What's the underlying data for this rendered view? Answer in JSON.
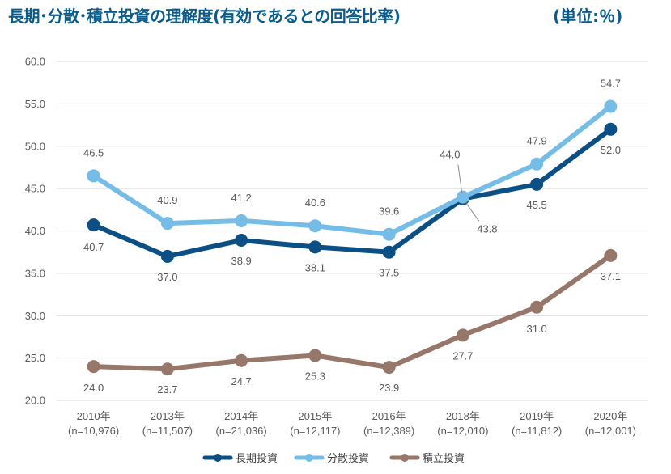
{
  "header": {
    "title": "長期･分散･積立投資の理解度(有効であるとの回答比率)",
    "unit": "(単位:％)"
  },
  "colors": {
    "grid": "#d9d9d9",
    "axis_text": "#595959"
  },
  "chart_data": {
    "type": "line",
    "categories": [
      "2010年",
      "2013年",
      "2014年",
      "2015年",
      "2016年",
      "2018年",
      "2019年",
      "2020年"
    ],
    "category_sublabels": [
      "(n=10,976)",
      "(n=11,507)",
      "(n=21,036)",
      "(n=12,117)",
      "(n=12,389)",
      "(n=12,010)",
      "(n=11,812)",
      "(n=12,001)"
    ],
    "series": [
      {
        "name": "長期投資",
        "color": "#0b4f84",
        "values": [
          40.7,
          37.0,
          38.9,
          38.1,
          37.5,
          43.8,
          45.5,
          52.0
        ],
        "labels": [
          "40.7",
          "37.0",
          "38.9",
          "38.1",
          "37.5",
          "43.8",
          "45.5",
          "52.0"
        ]
      },
      {
        "name": "分散投資",
        "color": "#75bde6",
        "values": [
          46.5,
          40.9,
          41.2,
          40.6,
          39.6,
          44.0,
          47.9,
          54.7
        ],
        "labels": [
          "46.5",
          "40.9",
          "41.2",
          "40.6",
          "39.6",
          "44.0",
          "47.9",
          "54.7"
        ]
      },
      {
        "name": "積立投資",
        "color": "#96776a",
        "values": [
          24.0,
          23.7,
          24.7,
          25.3,
          23.9,
          27.7,
          31.0,
          37.1
        ],
        "labels": [
          "24.0",
          "23.7",
          "24.7",
          "25.3",
          "23.9",
          "27.7",
          "31.0",
          "37.1"
        ]
      }
    ],
    "yticks": [
      "20.0",
      "25.0",
      "30.0",
      "35.0",
      "40.0",
      "45.0",
      "50.0",
      "55.0",
      "60.0"
    ],
    "ylim": [
      20,
      60
    ],
    "grid": true,
    "legend": "bottom"
  }
}
